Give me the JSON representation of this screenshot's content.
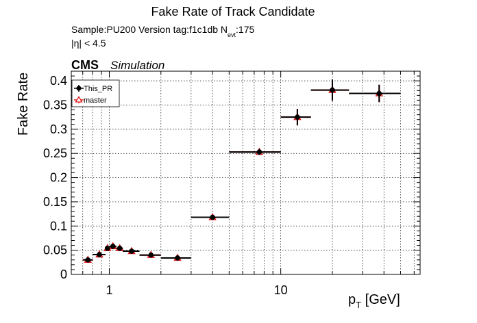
{
  "chart_data": {
    "type": "scatter",
    "title": "Fake Rate of Track Candidate",
    "subtitle": {
      "sample_line_prefix": "Sample:PU200   Version tag:f1c1db  N",
      "sample_line_sub": "evt",
      "sample_line_suffix": ":175",
      "eta_line": "|η| < 4.5"
    },
    "cms_label": "CMS",
    "cms_sublabel": "Simulation",
    "ylabel": "Fake Rate",
    "xlabel_main": "p",
    "xlabel_sub": "T",
    "xlabel_unit": " [GeV]",
    "x_scale": "log",
    "xlim": [
      0.6,
      65
    ],
    "ylim": [
      0,
      0.42
    ],
    "grid": true,
    "legend_position": "top-left",
    "y_ticks": [
      {
        "v": 0,
        "label": "0"
      },
      {
        "v": 0.05,
        "label": "0.05"
      },
      {
        "v": 0.1,
        "label": "0.1"
      },
      {
        "v": 0.15,
        "label": "0.15"
      },
      {
        "v": 0.2,
        "label": "0.2"
      },
      {
        "v": 0.25,
        "label": "0.25"
      },
      {
        "v": 0.3,
        "label": "0.3"
      },
      {
        "v": 0.35,
        "label": "0.35"
      },
      {
        "v": 0.4,
        "label": "0.4"
      }
    ],
    "x_ticks": [
      {
        "v": 1,
        "label": "1"
      },
      {
        "v": 10,
        "label": "10"
      }
    ],
    "series": [
      {
        "name": "This_PR",
        "color": "#000000",
        "marker": "circle-filled",
        "points": [
          {
            "x": 0.75,
            "xlo": 0.7,
            "xhi": 0.8,
            "y": 0.03,
            "yerr": 0.003
          },
          {
            "x": 0.875,
            "xlo": 0.8,
            "xhi": 0.95,
            "y": 0.041,
            "yerr": 0.003
          },
          {
            "x": 0.975,
            "xlo": 0.95,
            "xhi": 1.0,
            "y": 0.054,
            "yerr": 0.003
          },
          {
            "x": 1.05,
            "xlo": 1.0,
            "xhi": 1.1,
            "y": 0.058,
            "yerr": 0.003
          },
          {
            "x": 1.15,
            "xlo": 1.1,
            "xhi": 1.2,
            "y": 0.054,
            "yerr": 0.003
          },
          {
            "x": 1.35,
            "xlo": 1.2,
            "xhi": 1.5,
            "y": 0.048,
            "yerr": 0.003
          },
          {
            "x": 1.75,
            "xlo": 1.5,
            "xhi": 2.0,
            "y": 0.04,
            "yerr": 0.003
          },
          {
            "x": 2.5,
            "xlo": 2.0,
            "xhi": 3.0,
            "y": 0.034,
            "yerr": 0.003
          },
          {
            "x": 4.0,
            "xlo": 3.0,
            "xhi": 5.0,
            "y": 0.118,
            "yerr": 0.004
          },
          {
            "x": 7.5,
            "xlo": 5.0,
            "xhi": 10.0,
            "y": 0.253,
            "yerr": 0.006
          },
          {
            "x": 12.5,
            "xlo": 10.0,
            "xhi": 15.0,
            "y": 0.325,
            "yerr": 0.017
          },
          {
            "x": 20.0,
            "xlo": 15.0,
            "xhi": 25.0,
            "y": 0.381,
            "yerr": 0.022
          },
          {
            "x": 37.5,
            "xlo": 25.0,
            "xhi": 50.0,
            "y": 0.374,
            "yerr": 0.018
          }
        ]
      },
      {
        "name": "master",
        "color": "#e31a1c",
        "marker": "triangle-open",
        "points": [
          {
            "x": 0.75,
            "xlo": 0.7,
            "xhi": 0.8,
            "y": 0.03,
            "yerr": 0.003
          },
          {
            "x": 0.875,
            "xlo": 0.8,
            "xhi": 0.95,
            "y": 0.041,
            "yerr": 0.003
          },
          {
            "x": 0.975,
            "xlo": 0.95,
            "xhi": 1.0,
            "y": 0.054,
            "yerr": 0.003
          },
          {
            "x": 1.05,
            "xlo": 1.0,
            "xhi": 1.1,
            "y": 0.058,
            "yerr": 0.003
          },
          {
            "x": 1.15,
            "xlo": 1.1,
            "xhi": 1.2,
            "y": 0.054,
            "yerr": 0.003
          },
          {
            "x": 1.35,
            "xlo": 1.2,
            "xhi": 1.5,
            "y": 0.048,
            "yerr": 0.003
          },
          {
            "x": 1.75,
            "xlo": 1.5,
            "xhi": 2.0,
            "y": 0.04,
            "yerr": 0.003
          },
          {
            "x": 2.5,
            "xlo": 2.0,
            "xhi": 3.0,
            "y": 0.034,
            "yerr": 0.003
          },
          {
            "x": 4.0,
            "xlo": 3.0,
            "xhi": 5.0,
            "y": 0.118,
            "yerr": 0.004
          },
          {
            "x": 7.5,
            "xlo": 5.0,
            "xhi": 10.0,
            "y": 0.253,
            "yerr": 0.006
          },
          {
            "x": 12.5,
            "xlo": 10.0,
            "xhi": 15.0,
            "y": 0.325,
            "yerr": 0.017
          },
          {
            "x": 20.0,
            "xlo": 15.0,
            "xhi": 25.0,
            "y": 0.381,
            "yerr": 0.022
          },
          {
            "x": 37.5,
            "xlo": 25.0,
            "xhi": 50.0,
            "y": 0.374,
            "yerr": 0.018
          }
        ]
      }
    ]
  }
}
